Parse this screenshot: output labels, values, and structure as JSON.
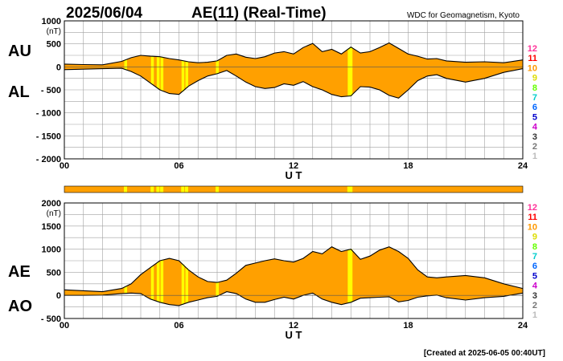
{
  "header": {
    "date": "2025/06/04",
    "title": "AE(11) (Real-Time)",
    "source": "WDC for Geomagnetism, Kyoto"
  },
  "footer": {
    "created": "[Created at 2025-06-05 00:40UT]"
  },
  "colors": {
    "fill": "#ffa000",
    "spike": "#ffff00",
    "line": "#000000",
    "grid": "#a0a0a0",
    "stations": [
      "#ff3399",
      "#ff0000",
      "#ff9900",
      "#dddd00",
      "#66ff00",
      "#00cccc",
      "#0066ff",
      "#0000cc",
      "#cc00cc",
      "#333333",
      "#777777",
      "#bbbbbb"
    ]
  },
  "station_labels": [
    "12",
    "11",
    "10",
    "9",
    "8",
    "7",
    "6",
    "5",
    "4",
    "3",
    "2",
    "1"
  ],
  "spike_hours": [
    3.2,
    4.6,
    4.9,
    5.1,
    6.2,
    6.4,
    8.0,
    14.9,
    15.0
  ],
  "chart_data": [
    {
      "type": "area",
      "name": "top-panel",
      "series": [
        {
          "name": "AU"
        },
        {
          "name": "AL"
        }
      ],
      "unit": "(nT)",
      "xlabel": "U T",
      "xlim": [
        0,
        24
      ],
      "ylim": [
        -2000,
        1000
      ],
      "yticks": [
        1000,
        500,
        0,
        -500,
        -1000,
        -1500,
        -2000
      ],
      "ytick_labels": [
        "1000",
        "500",
        "0",
        "- 500",
        "- 1000",
        "- 1500",
        "- 2000"
      ],
      "xticks": [
        0,
        6,
        12,
        18,
        24
      ],
      "xtick_labels": [
        "00",
        "06",
        "12",
        "18",
        "24"
      ],
      "x": [
        0,
        1,
        2,
        3,
        3.5,
        4,
        4.5,
        5,
        5.5,
        6,
        6.5,
        7,
        7.5,
        8,
        8.5,
        9,
        9.5,
        10,
        10.5,
        11,
        11.5,
        12,
        12.5,
        13,
        13.5,
        14,
        14.5,
        15,
        15.5,
        16,
        16.5,
        17,
        17.5,
        18,
        18.5,
        19,
        19.5,
        20,
        21,
        22,
        23,
        24
      ],
      "au": [
        60,
        50,
        45,
        120,
        200,
        250,
        230,
        220,
        180,
        150,
        110,
        90,
        100,
        130,
        250,
        280,
        210,
        180,
        220,
        300,
        330,
        280,
        420,
        510,
        330,
        380,
        280,
        430,
        300,
        330,
        420,
        520,
        400,
        280,
        230,
        170,
        180,
        130,
        100,
        110,
        90,
        150
      ],
      "al": [
        -60,
        -50,
        -40,
        -30,
        -100,
        -200,
        -350,
        -500,
        -580,
        -600,
        -420,
        -300,
        -200,
        -150,
        -80,
        -200,
        -330,
        -430,
        -470,
        -450,
        -370,
        -400,
        -320,
        -430,
        -500,
        -600,
        -650,
        -630,
        -430,
        -440,
        -500,
        -620,
        -680,
        -500,
        -300,
        -200,
        -170,
        -250,
        -330,
        -250,
        -120,
        -40
      ]
    },
    {
      "type": "area",
      "name": "bottom-panel",
      "series": [
        {
          "name": "AE"
        },
        {
          "name": "AO"
        }
      ],
      "unit": "(nT)",
      "xlabel": "U T",
      "xlim": [
        0,
        24
      ],
      "ylim": [
        -500,
        2000
      ],
      "yticks": [
        2000,
        1500,
        1000,
        500,
        0,
        -500
      ],
      "ytick_labels": [
        "2000",
        "1500",
        "1000",
        "500",
        "0",
        "- 500"
      ],
      "xticks": [
        0,
        6,
        12,
        18,
        24
      ],
      "xtick_labels": [
        "00",
        "06",
        "12",
        "18",
        "24"
      ],
      "x": [
        0,
        1,
        2,
        3,
        3.5,
        4,
        4.5,
        5,
        5.5,
        6,
        6.5,
        7,
        7.5,
        8,
        8.5,
        9,
        9.5,
        10,
        10.5,
        11,
        11.5,
        12,
        12.5,
        13,
        13.5,
        14,
        14.5,
        15,
        15.5,
        16,
        16.5,
        17,
        17.5,
        18,
        18.5,
        19,
        19.5,
        20,
        21,
        22,
        23,
        24
      ],
      "ae": [
        120,
        100,
        80,
        150,
        250,
        450,
        600,
        750,
        800,
        750,
        550,
        400,
        300,
        280,
        330,
        480,
        650,
        700,
        750,
        790,
        750,
        720,
        800,
        950,
        900,
        1050,
        950,
        1000,
        780,
        850,
        980,
        1050,
        950,
        800,
        550,
        400,
        380,
        400,
        430,
        380,
        250,
        150
      ],
      "ao": [
        0,
        0,
        5,
        40,
        50,
        40,
        -80,
        -150,
        -200,
        -220,
        -150,
        -100,
        -50,
        -20,
        80,
        40,
        -80,
        -150,
        -150,
        -90,
        -40,
        -80,
        0,
        50,
        -80,
        -150,
        -200,
        -150,
        -60,
        -50,
        -40,
        -30,
        -140,
        -110,
        -40,
        -10,
        5,
        -50,
        -100,
        -50,
        -20,
        50
      ]
    }
  ],
  "panel_labels": {
    "top_upper": "AU",
    "top_lower": "AL",
    "bottom_upper": "AE",
    "bottom_lower": "AO"
  }
}
